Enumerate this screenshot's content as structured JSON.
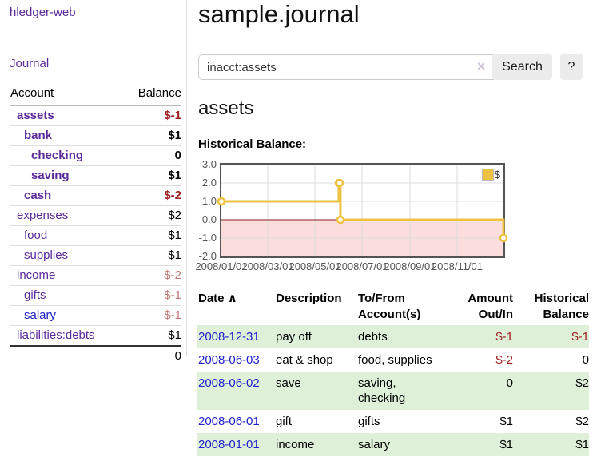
{
  "app": {
    "brand": "hledger-web"
  },
  "sidebar": {
    "nav": {
      "journal_label": "Journal"
    },
    "accounts_table": {
      "headers": {
        "account": "Account",
        "balance": "Balance"
      },
      "rows": [
        {
          "name": "assets",
          "level": 1,
          "bold": true,
          "link_style": "purple",
          "balance": "$-1",
          "balance_style": "neg-strong"
        },
        {
          "name": "bank",
          "level": 2,
          "bold": true,
          "link_style": "purple",
          "balance": "$1",
          "balance_style": "normal-bal"
        },
        {
          "name": "checking",
          "level": 3,
          "bold": true,
          "link_style": "purple",
          "balance": "0",
          "balance_style": "normal-bal"
        },
        {
          "name": "saving",
          "level": 3,
          "bold": true,
          "link_style": "purple",
          "balance": "$1",
          "balance_style": "normal-bal"
        },
        {
          "name": "cash",
          "level": 2,
          "bold": true,
          "link_style": "purple",
          "balance": "$-2",
          "balance_style": "neg-strong"
        },
        {
          "name": "expenses",
          "level": 1,
          "bold": false,
          "link_style": "purple",
          "balance": "$2",
          "balance_style": "normal-bal"
        },
        {
          "name": "food",
          "level": 2,
          "bold": false,
          "link_style": "purple",
          "balance": "$1",
          "balance_style": "normal-bal"
        },
        {
          "name": "supplies",
          "level": 2,
          "bold": false,
          "link_style": "purple",
          "balance": "$1",
          "balance_style": "normal-bal"
        },
        {
          "name": "income",
          "level": 1,
          "bold": false,
          "link_style": "purple",
          "balance": "$-2",
          "balance_style": "neg-muted"
        },
        {
          "name": "gifts",
          "level": 2,
          "bold": false,
          "link_style": "purple",
          "balance": "$-1",
          "balance_style": "neg-muted"
        },
        {
          "name": "salary",
          "level": 2,
          "bold": false,
          "link_style": "blue",
          "balance": "$-1",
          "balance_style": "neg-muted"
        },
        {
          "name": "liabilities:debts",
          "level": 1,
          "bold": false,
          "link_style": "purple",
          "balance": "$1",
          "balance_style": "normal-bal"
        }
      ],
      "total": "0"
    }
  },
  "header": {
    "title": "sample.journal"
  },
  "search": {
    "value": "inacct:assets",
    "clear_icon": "×",
    "button_label": "Search",
    "help_label": "?"
  },
  "account_page": {
    "heading": "assets",
    "chart_label": "Historical Balance:"
  },
  "chart_data": {
    "type": "line",
    "title": "Historical Balance:",
    "x_type": "date",
    "xlim": [
      "2008-01-01",
      "2008-12-31"
    ],
    "ylim": [
      -2,
      3
    ],
    "grid": true,
    "series": [
      {
        "name": "$",
        "color": "#edc240",
        "step": true,
        "marker_fill": "#ffffff",
        "points": [
          [
            "2008-01-01",
            1
          ],
          [
            "2008-06-01",
            2
          ],
          [
            "2008-06-02",
            2
          ],
          [
            "2008-06-03",
            0
          ],
          [
            "2008-12-31",
            -1
          ]
        ]
      }
    ],
    "xticks": [
      {
        "t": "2008-01-01",
        "label": "2008/01/01"
      },
      {
        "t": "2008-03-01",
        "label": "2008/03/01"
      },
      {
        "t": "2008-05-01",
        "label": "2008/05/01"
      },
      {
        "t": "2008-07-01",
        "label": "2008/07/01"
      },
      {
        "t": "2008-09-01",
        "label": "2008/09/01"
      },
      {
        "t": "2008-11-01",
        "label": "2008/11/01"
      }
    ],
    "yticks": [
      {
        "v": 3,
        "label": "3.0"
      },
      {
        "v": 2,
        "label": "2.0"
      },
      {
        "v": 1,
        "label": "1.0"
      },
      {
        "v": 0,
        "label": "0.0"
      },
      {
        "v": -1,
        "label": "-1.0"
      },
      {
        "v": -2,
        "label": "-2.0"
      }
    ],
    "legend": {
      "position": "top-right",
      "entries": [
        {
          "label": "$",
          "color": "#edc240"
        }
      ]
    },
    "negative_region_fill": "#fbdddd",
    "zero_line_color": "#8f1e1e",
    "grid_color": "#dcdcdc"
  },
  "register_table": {
    "headers": {
      "date": "Date",
      "sort_icon": "∧",
      "description": "Description",
      "accounts": "To/From Account(s)",
      "amount": "Amount Out/In",
      "balance": "Historical Balance"
    },
    "rows": [
      {
        "date": "2008-12-31",
        "description": "pay off",
        "accounts": "debts",
        "amount": "$-1",
        "amount_neg": true,
        "balance": "$-1",
        "balance_neg": true,
        "highlight": true
      },
      {
        "date": "2008-06-03",
        "description": "eat & shop",
        "accounts": "food, supplies",
        "amount": "$-2",
        "amount_neg": true,
        "balance": "0",
        "balance_neg": false,
        "highlight": false
      },
      {
        "date": "2008-06-02",
        "description": "save",
        "accounts": "saving, checking",
        "amount": "0",
        "amount_neg": false,
        "balance": "$2",
        "balance_neg": false,
        "highlight": true
      },
      {
        "date": "2008-06-01",
        "description": "gift",
        "accounts": "gifts",
        "amount": "$1",
        "amount_neg": false,
        "balance": "$2",
        "balance_neg": false,
        "highlight": false
      },
      {
        "date": "2008-01-01",
        "description": "income",
        "accounts": "salary",
        "amount": "$1",
        "amount_neg": false,
        "balance": "$1",
        "balance_neg": false,
        "highlight": true
      }
    ]
  },
  "colors": {
    "link_purple": "#5b2a9a",
    "link_blue": "#2222cc",
    "negative_strong": "#9d1d1f",
    "negative_muted": "#c27878",
    "row_highlight_green": "#dff0d8",
    "chart_line_yellow": "#edc240"
  }
}
